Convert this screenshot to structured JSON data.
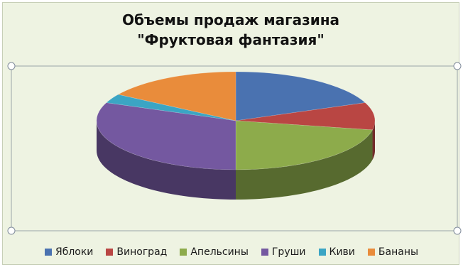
{
  "chart_data": {
    "type": "pie",
    "style": "3d",
    "title_lines": [
      "Объемы продаж магазина",
      "\"Фруктовая фантазия\""
    ],
    "categories": [
      "Яблоки",
      "Виноград",
      "Апельсины",
      "Груши",
      "Киви",
      "Бананы"
    ],
    "values": [
      19,
      9,
      22,
      31,
      3,
      16
    ],
    "colors": [
      "#4a72b0",
      "#b94643",
      "#8dab4b",
      "#7458a0",
      "#3ba5c4",
      "#e98c3b"
    ],
    "legend_position": "bottom",
    "selected": true
  }
}
